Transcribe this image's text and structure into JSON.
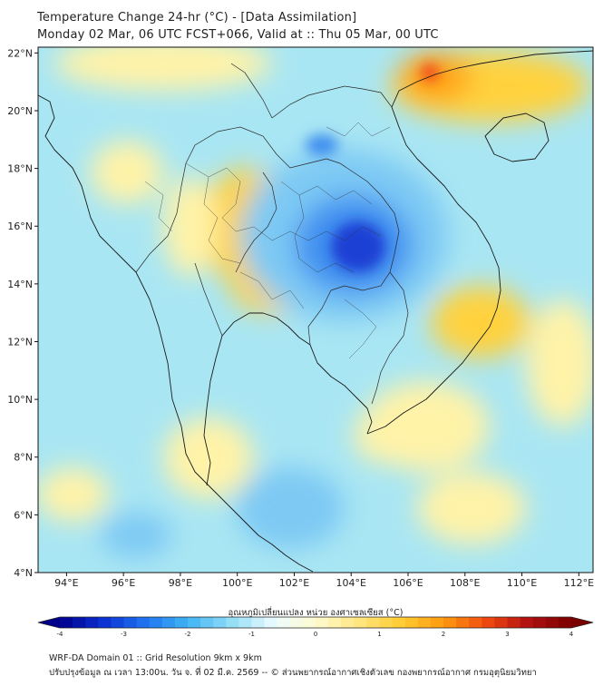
{
  "header": {
    "title_line1": "Temperature Change 24-hr (°C) - [Data Assimilation]",
    "title_line2": "Monday 02 Mar, 06 UTC FCST+066, Valid at :: Thu 05 Mar, 00 UTC"
  },
  "map": {
    "lon_range": [
      93,
      112.5
    ],
    "lat_range": [
      4,
      22.2
    ],
    "lat_labels": [
      "22°N",
      "20°N",
      "18°N",
      "16°N",
      "14°N",
      "12°N",
      "10°N",
      "8°N",
      "6°N",
      "4°N"
    ],
    "lat_values": [
      22,
      20,
      18,
      16,
      14,
      12,
      10,
      8,
      6,
      4
    ],
    "lon_labels": [
      "94°E",
      "96°E",
      "98°E",
      "100°E",
      "102°E",
      "104°E",
      "106°E",
      "108°E",
      "110°E",
      "112°E"
    ],
    "lon_values": [
      94,
      96,
      98,
      100,
      102,
      104,
      106,
      108,
      110,
      112
    ],
    "field_colors": {
      "base": "#a9e6f3",
      "cold_strong": "#1a3fd4",
      "cold": "#3f8ff0",
      "cold_light": "#7dc9f4",
      "warm_light": "#fff3a8",
      "warm": "#ffd23e",
      "warm_strong": "#ffa416",
      "hot": "#f04a1e"
    }
  },
  "colorbar": {
    "label": "อุณหภูมิเปลี่ยนแปลง หน่วย องศาเซลเซียส (°C)",
    "ticks": [
      "-4",
      "-3",
      "-2",
      "-1",
      "0",
      "1",
      "2",
      "3",
      "4"
    ],
    "min": -4,
    "max": 4,
    "stops": [
      "#00008b",
      "#0a2fd0",
      "#1f73f0",
      "#3fb4f4",
      "#8fdcf6",
      "#e9fbff",
      "#fffbd0",
      "#ffe680",
      "#ffcc33",
      "#ff9a10",
      "#f04a10",
      "#b01010",
      "#7a0000"
    ]
  },
  "footer": {
    "line1": "WRF-DA Domain 01 :: Grid Resolution 9km x 9km",
    "line2": "ปรับปรุงข้อมูล ณ เวลา 13:00น. วัน จ. ที่ 02 มี.ค. 2569 -- © ส่วนพยากรณ์อากาศเชิงตัวเลข กองพยากรณ์อากาศ กรมอุตุนิยมวิทยา"
  }
}
